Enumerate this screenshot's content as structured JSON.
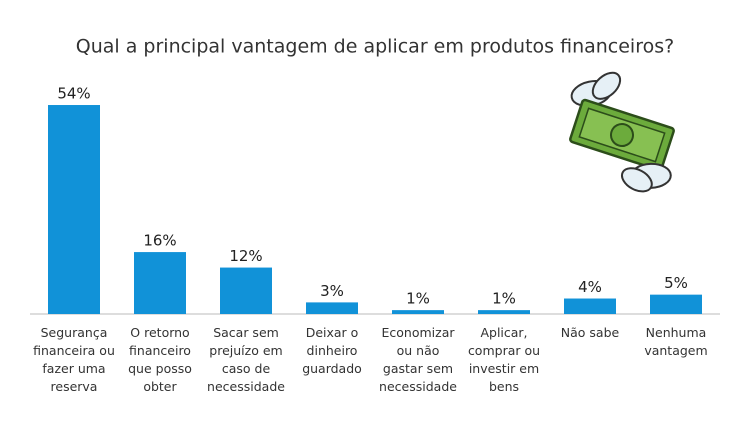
{
  "chart_data": {
    "type": "bar",
    "title": "Qual a principal vantagem de aplicar em produtos financeiros?",
    "categories": [
      "Segurança financeira ou fazer uma reserva",
      "O retorno financeiro que posso obter",
      "Sacar sem prejuízo em caso de necessidade",
      "Deixar o dinheiro guardado",
      "Economizar ou não gastar sem necessidade",
      "Aplicar, comprar ou investir em bens",
      "Não sabe",
      "Nenhuma vantagem"
    ],
    "values": [
      54,
      16,
      12,
      3,
      1,
      1,
      4,
      5
    ],
    "value_labels": [
      "54%",
      "16%",
      "12%",
      "3%",
      "1%",
      "1%",
      "4%",
      "5%"
    ],
    "color": "#1192d8"
  }
}
